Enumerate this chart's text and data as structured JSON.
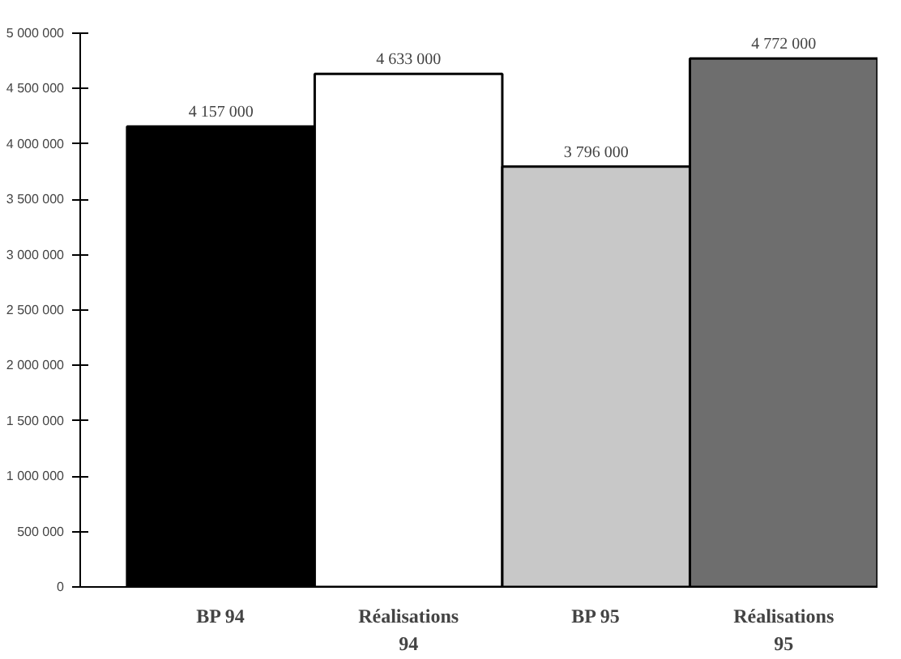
{
  "chart_data": {
    "type": "bar",
    "categories": [
      "BP 94",
      "Réalisations\n94",
      "BP 95",
      "Réalisations\n95"
    ],
    "values": [
      4157000,
      4633000,
      3796000,
      4772000
    ],
    "colors": [
      "#000000",
      "#ffffff",
      "#c8c8c8",
      "#6e6e6e"
    ],
    "value_labels": [
      "4 157 000",
      "4 633 000",
      "3 796 000",
      "4 772 000"
    ],
    "ylim": [
      0,
      5000000
    ],
    "yticks": [
      {
        "value": 0,
        "label": "0"
      },
      {
        "value": 500000,
        "label": "500 000"
      },
      {
        "value": 1000000,
        "label": "1 000 000"
      },
      {
        "value": 1500000,
        "label": "1 500 000"
      },
      {
        "value": 2000000,
        "label": "2 000 000"
      },
      {
        "value": 2500000,
        "label": "2 500 000"
      },
      {
        "value": 3000000,
        "label": "3 000 000"
      },
      {
        "value": 3500000,
        "label": "3 500 000"
      },
      {
        "value": 4000000,
        "label": "4 000 000"
      },
      {
        "value": 4500000,
        "label": "4 500 000"
      },
      {
        "value": 5000000,
        "label": "5 000 000"
      }
    ],
    "grid": false
  }
}
